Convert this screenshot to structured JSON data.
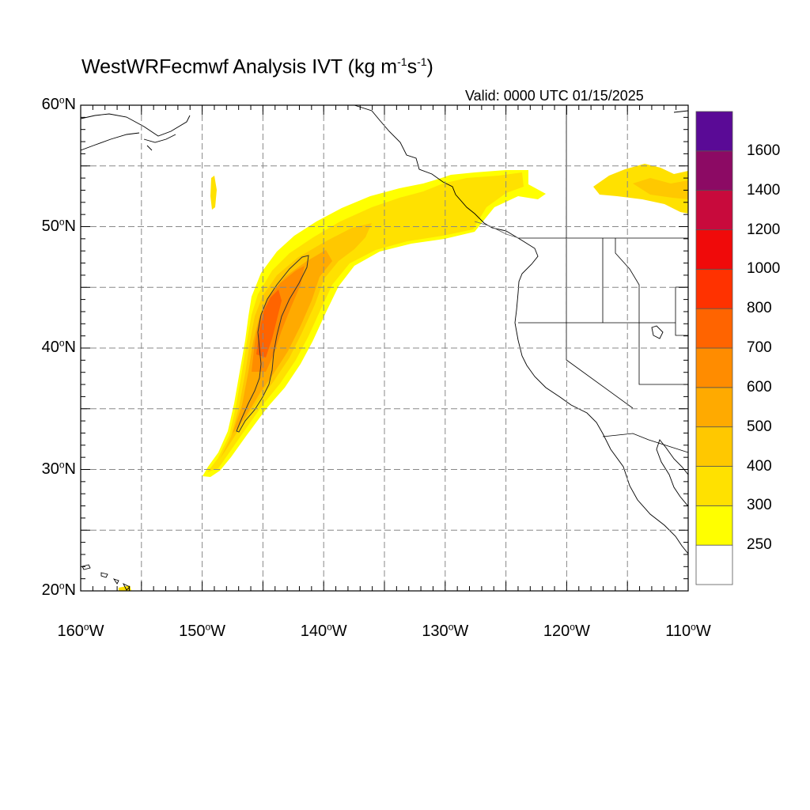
{
  "title": {
    "main": "WestWRFecmwf Analysis IVT (kg m",
    "sup1": "-1",
    "mid": "s",
    "sup2": "-1",
    "end": ")"
  },
  "valid_text": "Valid: 0000 UTC 01/15/2025",
  "map": {
    "lon_range": [
      -160,
      -110
    ],
    "lat_range": [
      20,
      60
    ],
    "grid": "dashed",
    "lat_ticks": [
      {
        "lat": 60,
        "label": "60",
        "suffix": "N"
      },
      {
        "lat": 50,
        "label": "50",
        "suffix": "N"
      },
      {
        "lat": 40,
        "label": "40",
        "suffix": "N"
      },
      {
        "lat": 30,
        "label": "30",
        "suffix": "N"
      },
      {
        "lat": 20,
        "label": "20",
        "suffix": "N"
      }
    ],
    "lon_ticks": [
      {
        "lon": -160,
        "label": "160",
        "suffix": "W"
      },
      {
        "lon": -150,
        "label": "150",
        "suffix": "W"
      },
      {
        "lon": -140,
        "label": "140",
        "suffix": "W"
      },
      {
        "lon": -130,
        "label": "130",
        "suffix": "W"
      },
      {
        "lon": -120,
        "label": "120",
        "suffix": "W"
      },
      {
        "lon": -110,
        "label": "110",
        "suffix": "W"
      }
    ]
  },
  "colorbar": {
    "bins": [
      {
        "color": "#ffffff"
      },
      {
        "color": "#ffff00"
      },
      {
        "color": "#ffe100"
      },
      {
        "color": "#ffc800"
      },
      {
        "color": "#ffaa00"
      },
      {
        "color": "#ff8c00"
      },
      {
        "color": "#ff6400"
      },
      {
        "color": "#ff3200"
      },
      {
        "color": "#f00a0a"
      },
      {
        "color": "#c80a3c"
      },
      {
        "color": "#8c0a64"
      },
      {
        "color": "#5a0a96"
      }
    ],
    "labels": [
      "250",
      "300",
      "400",
      "500",
      "600",
      "700",
      "800",
      "1000",
      "1200",
      "1400",
      "1600"
    ]
  },
  "colors": {
    "ivt_250": "#ffff00",
    "ivt_300": "#ffe100",
    "ivt_400": "#ffc800",
    "ivt_500": "#ffaa00",
    "ivt_600": "#ff8c00",
    "ivt_700": "#ff6400"
  }
}
